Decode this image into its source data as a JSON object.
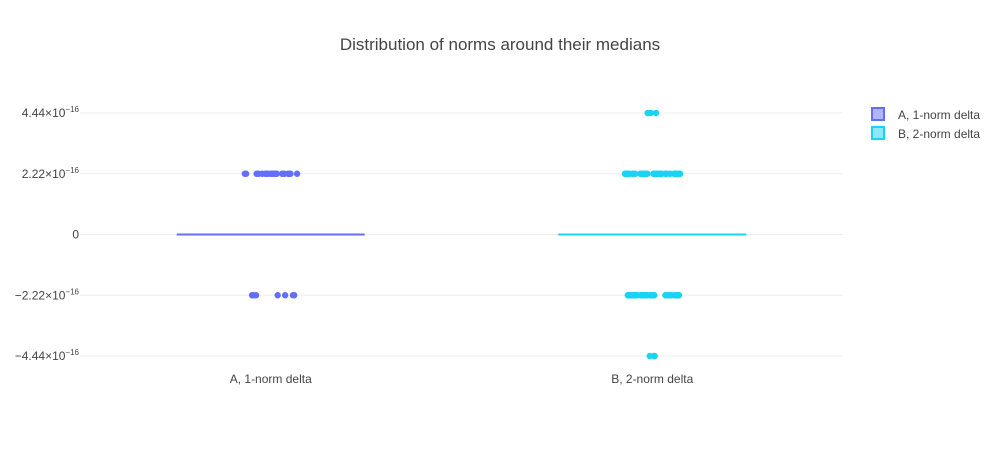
{
  "chart_data": {
    "type": "box",
    "title": "Distribution of norms around their medians",
    "xlabel": "",
    "ylabel": "",
    "categories": [
      "A, 1-norm delta",
      "B, 2-norm delta"
    ],
    "y_ticks": [
      {
        "value": 4.44e-16,
        "mantissa": "4.44×10",
        "exponent": "−16"
      },
      {
        "value": 2.22e-16,
        "mantissa": "2.22×10",
        "exponent": "−16"
      },
      {
        "value": 0,
        "mantissa": "0",
        "exponent": ""
      },
      {
        "value": -2.22e-16,
        "mantissa": "−2.22×10",
        "exponent": "−16"
      },
      {
        "value": -4.44e-16,
        "mantissa": "−4.44×10",
        "exponent": "−16"
      }
    ],
    "ylim": [
      -4.44e-16,
      4.44e-16
    ],
    "grid": true,
    "legend_position": "top-right",
    "series": [
      {
        "name": "A, 1-norm delta",
        "color": "#636efa",
        "median": 0,
        "points": [
          {
            "y": 2.22e-16,
            "count": 22
          },
          {
            "y": -2.22e-16,
            "count": 7
          }
        ]
      },
      {
        "name": "B, 2-norm delta",
        "color": "#19d3f3",
        "median": 0,
        "points": [
          {
            "y": 4.44e-16,
            "count": 3
          },
          {
            "y": 2.22e-16,
            "count": 40
          },
          {
            "y": -2.22e-16,
            "count": 38
          },
          {
            "y": -4.44e-16,
            "count": 3
          }
        ]
      }
    ]
  }
}
